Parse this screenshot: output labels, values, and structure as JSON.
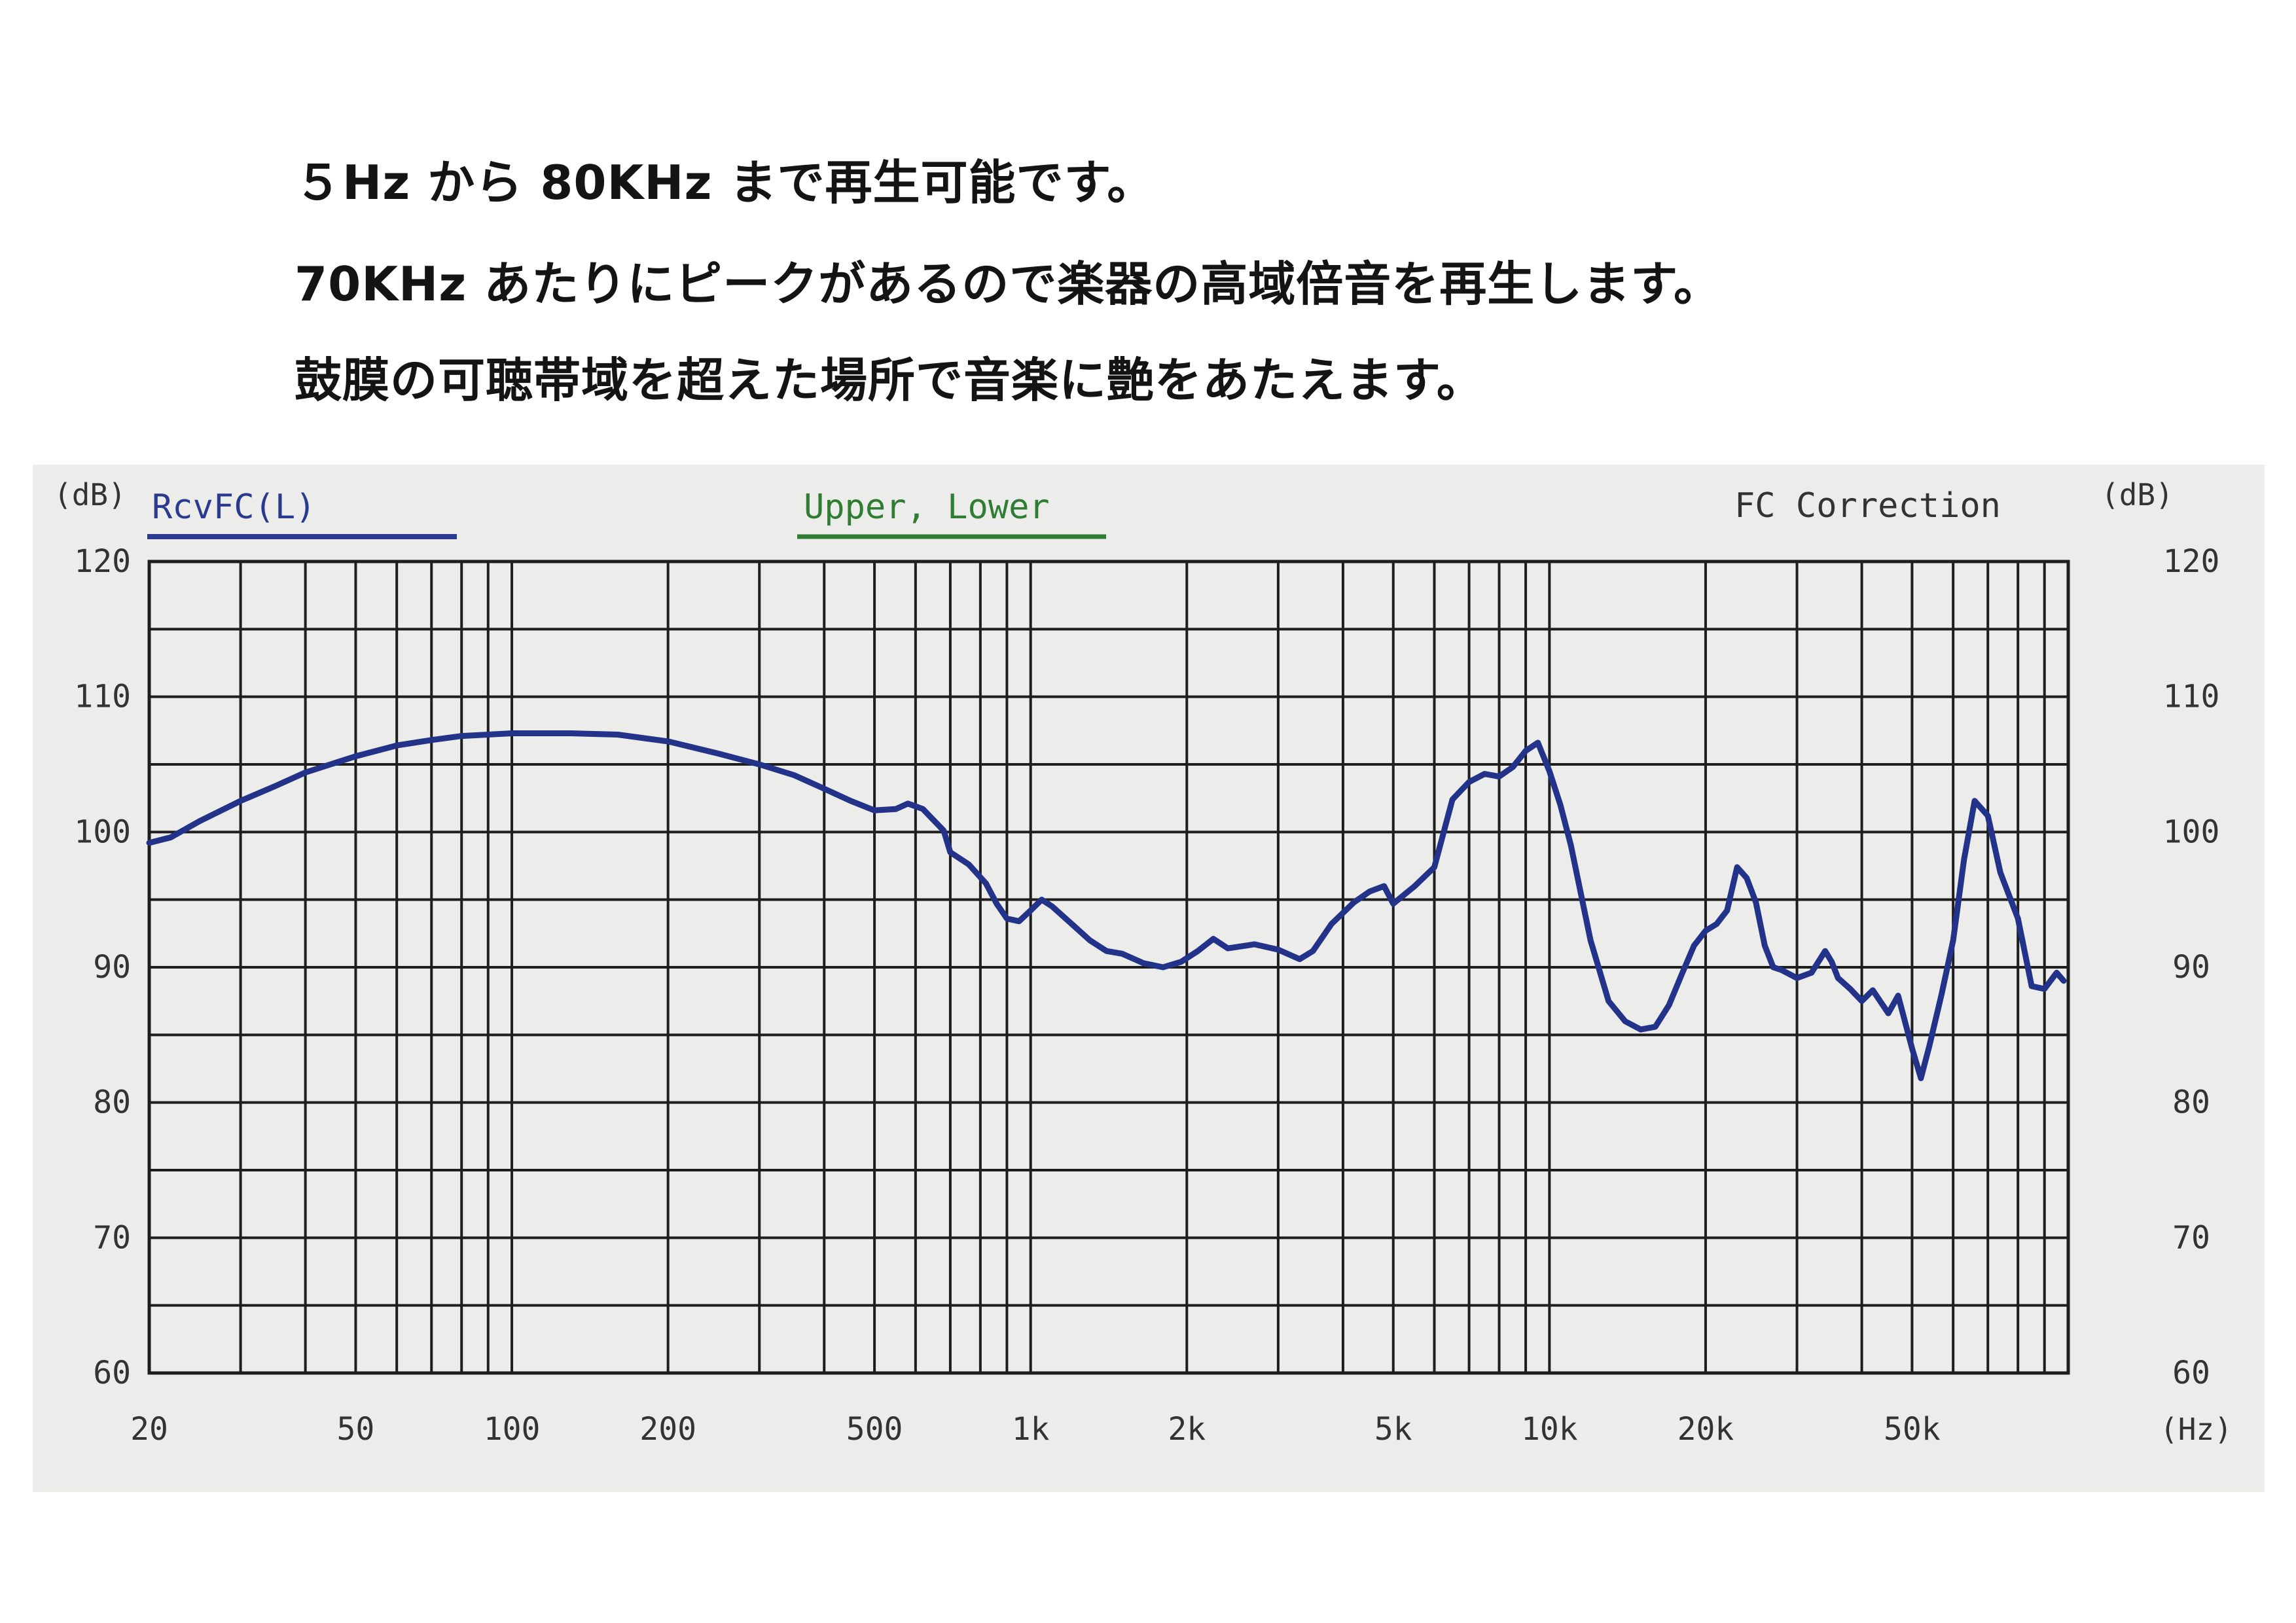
{
  "headlines": [
    "５Hz から 80KHz まで再生可能です。",
    "70KHz あたりにピークがあるので楽器の高域倍音を再生します。",
    "鼓膜の可聴帯域を超えた場所で音楽に艶をあたえます。"
  ],
  "colors": {
    "curve": "#24338a",
    "legend_main": "#2b3a8e",
    "legend_upper_lower": "#2e7d32",
    "grid": "#1e1e1e",
    "text": "#333333",
    "panel": "#ececea"
  },
  "chart_data": {
    "type": "line",
    "x_scale": "log",
    "xlim": [
      20,
      100000
    ],
    "ylim": [
      60,
      120
    ],
    "grid": true,
    "y_unit_left": "(dB)",
    "y_unit_right": "(dB)",
    "x_unit": "(Hz)",
    "legend": [
      {
        "label": "RcvFC(L)",
        "color": "#2b3a8e"
      },
      {
        "label": "Upper, Lower",
        "color": "#2e7d32"
      }
    ],
    "annotation": "FC Correction",
    "x_ticks": [
      {
        "value": 20,
        "label": "20"
      },
      {
        "value": 50,
        "label": "50"
      },
      {
        "value": 100,
        "label": "100"
      },
      {
        "value": 200,
        "label": "200"
      },
      {
        "value": 500,
        "label": "500"
      },
      {
        "value": 1000,
        "label": "1k"
      },
      {
        "value": 2000,
        "label": "2k"
      },
      {
        "value": 5000,
        "label": "5k"
      },
      {
        "value": 10000,
        "label": "10k"
      },
      {
        "value": 20000,
        "label": "20k"
      },
      {
        "value": 50000,
        "label": "50k"
      }
    ],
    "y_ticks": [
      {
        "value": 60,
        "label": "60"
      },
      {
        "value": 70,
        "label": "70"
      },
      {
        "value": 80,
        "label": "80"
      },
      {
        "value": 90,
        "label": "90"
      },
      {
        "value": 100,
        "label": "100"
      },
      {
        "value": 110,
        "label": "110"
      },
      {
        "value": 120,
        "label": "120"
      }
    ],
    "series": [
      {
        "name": "RcvFC(L)",
        "points": [
          [
            20,
            99.2
          ],
          [
            22,
            99.6
          ],
          [
            25,
            100.8
          ],
          [
            30,
            102.3
          ],
          [
            35,
            103.4
          ],
          [
            40,
            104.4
          ],
          [
            50,
            105.6
          ],
          [
            60,
            106.4
          ],
          [
            70,
            106.8
          ],
          [
            80,
            107.1
          ],
          [
            90,
            107.2
          ],
          [
            100,
            107.3
          ],
          [
            130,
            107.3
          ],
          [
            160,
            107.2
          ],
          [
            200,
            106.7
          ],
          [
            250,
            105.8
          ],
          [
            300,
            105.0
          ],
          [
            350,
            104.2
          ],
          [
            400,
            103.2
          ],
          [
            450,
            102.3
          ],
          [
            500,
            101.6
          ],
          [
            550,
            101.7
          ],
          [
            580,
            102.1
          ],
          [
            620,
            101.7
          ],
          [
            680,
            100.1
          ],
          [
            700,
            98.5
          ],
          [
            760,
            97.6
          ],
          [
            820,
            96.2
          ],
          [
            860,
            94.7
          ],
          [
            900,
            93.6
          ],
          [
            950,
            93.4
          ],
          [
            1000,
            94.2
          ],
          [
            1050,
            95.0
          ],
          [
            1100,
            94.5
          ],
          [
            1200,
            93.2
          ],
          [
            1300,
            92.0
          ],
          [
            1400,
            91.2
          ],
          [
            1500,
            91.0
          ],
          [
            1650,
            90.3
          ],
          [
            1800,
            90.0
          ],
          [
            1950,
            90.4
          ],
          [
            2100,
            91.2
          ],
          [
            2250,
            92.1
          ],
          [
            2400,
            91.4
          ],
          [
            2700,
            91.7
          ],
          [
            3000,
            91.3
          ],
          [
            3300,
            90.6
          ],
          [
            3500,
            91.2
          ],
          [
            3800,
            93.2
          ],
          [
            4200,
            94.8
          ],
          [
            4500,
            95.6
          ],
          [
            4800,
            96.0
          ],
          [
            5000,
            94.7
          ],
          [
            5500,
            96.0
          ],
          [
            6000,
            97.4
          ],
          [
            6500,
            102.4
          ],
          [
            7000,
            103.7
          ],
          [
            7500,
            104.3
          ],
          [
            8000,
            104.1
          ],
          [
            8500,
            104.8
          ],
          [
            9000,
            106.0
          ],
          [
            9500,
            106.6
          ],
          [
            10000,
            104.5
          ],
          [
            10500,
            102.0
          ],
          [
            11000,
            99.0
          ],
          [
            12000,
            92.0
          ],
          [
            13000,
            87.5
          ],
          [
            14000,
            86.0
          ],
          [
            15000,
            85.4
          ],
          [
            16000,
            85.6
          ],
          [
            17000,
            87.2
          ],
          [
            18000,
            89.5
          ],
          [
            19000,
            91.6
          ],
          [
            20000,
            92.7
          ],
          [
            21000,
            93.2
          ],
          [
            22000,
            94.2
          ],
          [
            23000,
            97.4
          ],
          [
            24000,
            96.6
          ],
          [
            25000,
            94.8
          ],
          [
            26000,
            91.6
          ],
          [
            27000,
            90.0
          ],
          [
            28000,
            89.8
          ],
          [
            30000,
            89.2
          ],
          [
            32000,
            89.6
          ],
          [
            34000,
            91.2
          ],
          [
            35000,
            90.4
          ],
          [
            36000,
            89.2
          ],
          [
            38000,
            88.4
          ],
          [
            40000,
            87.5
          ],
          [
            42000,
            88.3
          ],
          [
            45000,
            86.6
          ],
          [
            47000,
            87.9
          ],
          [
            50000,
            84.0
          ],
          [
            52000,
            81.8
          ],
          [
            54000,
            84.2
          ],
          [
            57000,
            88.0
          ],
          [
            60000,
            92.0
          ],
          [
            63000,
            98.0
          ],
          [
            66000,
            102.3
          ],
          [
            70000,
            101.2
          ],
          [
            74000,
            97.0
          ],
          [
            80000,
            93.6
          ],
          [
            85000,
            88.6
          ],
          [
            90000,
            88.4
          ],
          [
            95000,
            89.6
          ],
          [
            98000,
            89.0
          ]
        ]
      }
    ]
  }
}
